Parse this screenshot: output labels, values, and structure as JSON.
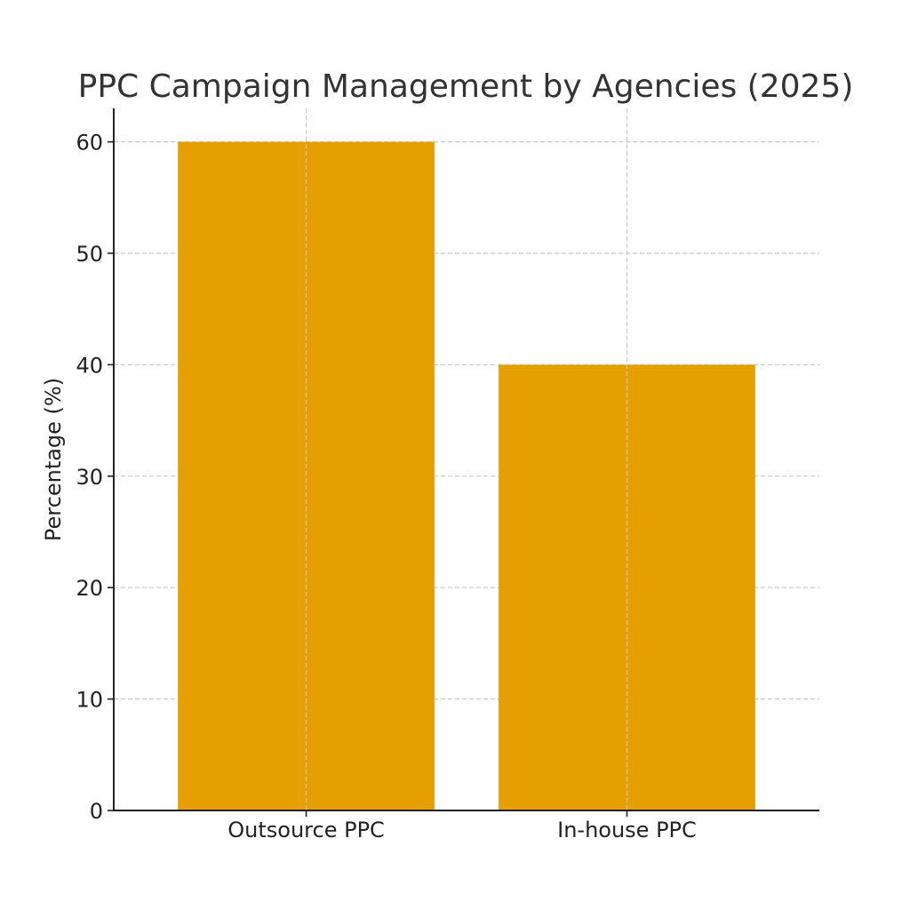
{
  "chart_data": {
    "type": "bar",
    "title": "PPC Campaign Management by Agencies (2025)",
    "xlabel": "",
    "ylabel": "Percentage (%)",
    "categories": [
      "Outsource PPC",
      "In-house PPC"
    ],
    "values": [
      60,
      40
    ],
    "ylim": [
      0,
      63
    ],
    "yticks": [
      0,
      10,
      20,
      30,
      40,
      50,
      60
    ],
    "grid": true,
    "bar_color": "#E69F00"
  }
}
